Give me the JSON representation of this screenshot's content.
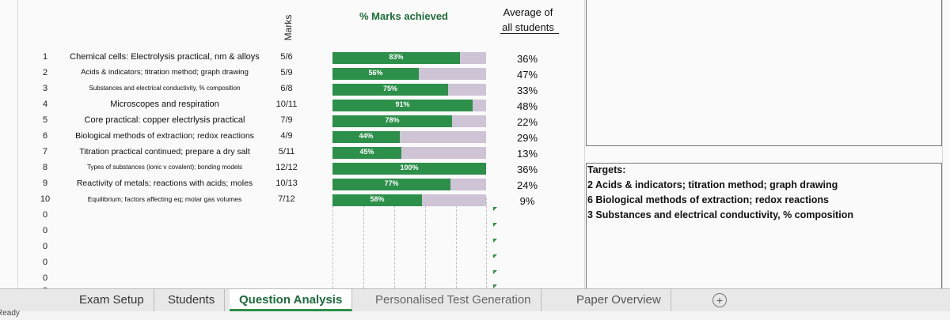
{
  "chart_header": {
    "title": "% Marks achieved",
    "marks_label": "Marks",
    "avg_label_1": "Average of",
    "avg_label_2": "all students"
  },
  "rows": [
    {
      "num": "1",
      "topic": "Chemical cells: Electrolysis practical, nm & alloys",
      "marks": "5/6",
      "pct": 83,
      "pct_label": "83%",
      "avg": "36%"
    },
    {
      "num": "2",
      "topic": "Acids & indicators; titration method; graph drawing",
      "marks": "5/9",
      "pct": 56,
      "pct_label": "56%",
      "avg": "47%"
    },
    {
      "num": "3",
      "topic": "Substances and electrical conductivity, % composition",
      "marks": "6/8",
      "pct": 75,
      "pct_label": "75%",
      "avg": "33%"
    },
    {
      "num": "4",
      "topic": "Microscopes and respiration",
      "marks": "10/11",
      "pct": 91,
      "pct_label": "91%",
      "avg": "48%"
    },
    {
      "num": "5",
      "topic": "Core practical: copper electrlysis practical",
      "marks": "7/9",
      "pct": 78,
      "pct_label": "78%",
      "avg": "22%"
    },
    {
      "num": "6",
      "topic": "Biological methods of extraction; redox reactions",
      "marks": "4/9",
      "pct": 44,
      "pct_label": "44%",
      "avg": "29%"
    },
    {
      "num": "7",
      "topic": "Titration practical continued; prepare a dry salt",
      "marks": "5/11",
      "pct": 45,
      "pct_label": "45%",
      "avg": "13%"
    },
    {
      "num": "8",
      "topic": "Types of substances (ionic v covalent); bonding models",
      "marks": "12/12",
      "pct": 100,
      "pct_label": "100%",
      "avg": "36%"
    },
    {
      "num": "9",
      "topic": "Reactivity of metals; reactions with acids; moles",
      "marks": "10/13",
      "pct": 77,
      "pct_label": "77%",
      "avg": "24%"
    },
    {
      "num": "10",
      "topic": "Equilibrium; factors affecting eq; molar gas volumes",
      "marks": "7/12",
      "pct": 58,
      "pct_label": "58%",
      "avg": "9%"
    }
  ],
  "empty_rows": [
    "0",
    "0",
    "0",
    "0",
    "0",
    "0"
  ],
  "targets": {
    "heading": "Targets:",
    "lines": [
      "2 Acids & indicators; titration method; graph drawing",
      "6 Biological methods of extraction; redox reactions",
      "3 Substances and electrical conductivity, % composition"
    ]
  },
  "tabs": [
    "Exam Setup",
    "Students",
    "Question Analysis",
    "Personalised Test Generation",
    "Paper Overview"
  ],
  "active_tab": "Question Analysis",
  "status_text": "Ready",
  "colors": {
    "bar_fill": "#2c8f4a",
    "bar_track": "#cfc3d6",
    "active_tab_text": "#1e6b3a"
  }
}
